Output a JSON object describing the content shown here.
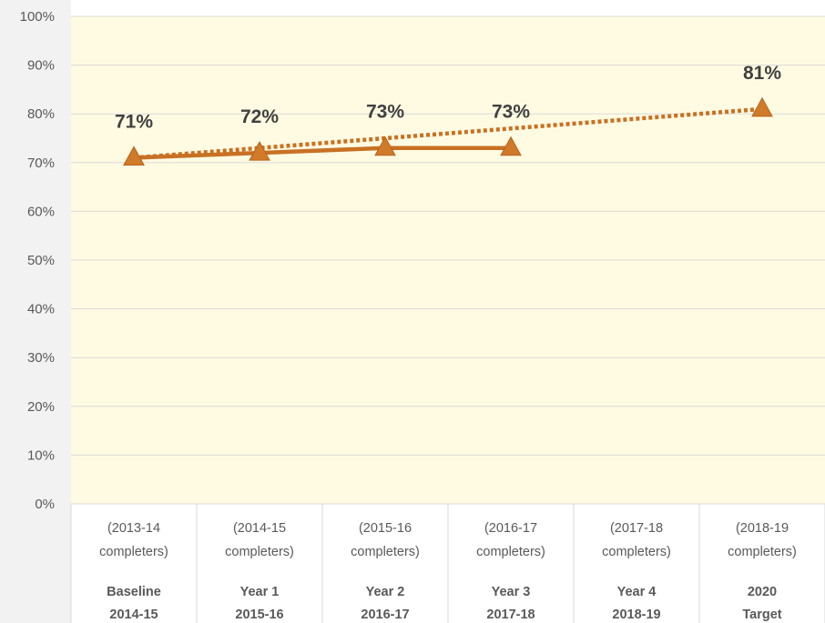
{
  "chart_data": {
    "type": "line",
    "title": "",
    "xlabel": "",
    "ylabel": "",
    "ylim": [
      0,
      100
    ],
    "y_ticks": [
      "0%",
      "10%",
      "20%",
      "30%",
      "40%",
      "50%",
      "60%",
      "70%",
      "80%",
      "90%",
      "100%"
    ],
    "categories": [
      {
        "sub1": "(2013-14",
        "sub2": "completers)",
        "label1": "Baseline",
        "label2": "2014-15"
      },
      {
        "sub1": "(2014-15",
        "sub2": "completers)",
        "label1": "Year 1",
        "label2": "2015-16"
      },
      {
        "sub1": "(2015-16",
        "sub2": "completers)",
        "label1": "Year 2",
        "label2": "2016-17"
      },
      {
        "sub1": "(2016-17",
        "sub2": "completers)",
        "label1": "Year 3",
        "label2": "2017-18"
      },
      {
        "sub1": "(2017-18",
        "sub2": "completers)",
        "label1": "Year 4",
        "label2": "2018-19"
      },
      {
        "sub1": "(2018-19",
        "sub2": "completers)",
        "label1": "2020",
        "label2": "Target"
      }
    ],
    "series": [
      {
        "style": "solid",
        "values": [
          71,
          72,
          73,
          73,
          null,
          null
        ],
        "labels": [
          "71%",
          "72%",
          "73%",
          "73%",
          "",
          ""
        ]
      },
      {
        "style": "dotted",
        "values": [
          71,
          null,
          null,
          null,
          null,
          81
        ],
        "labels": [
          "",
          "",
          "",
          "",
          "",
          "81%"
        ]
      }
    ],
    "grid": true,
    "legend": "none",
    "colors": {
      "line": "#C87124",
      "marker": "#D07A2A",
      "plot_bg": "#FFFBE2",
      "grid": "#D9D9D9",
      "axis_text": "#595959",
      "label_text": "#404040"
    }
  }
}
